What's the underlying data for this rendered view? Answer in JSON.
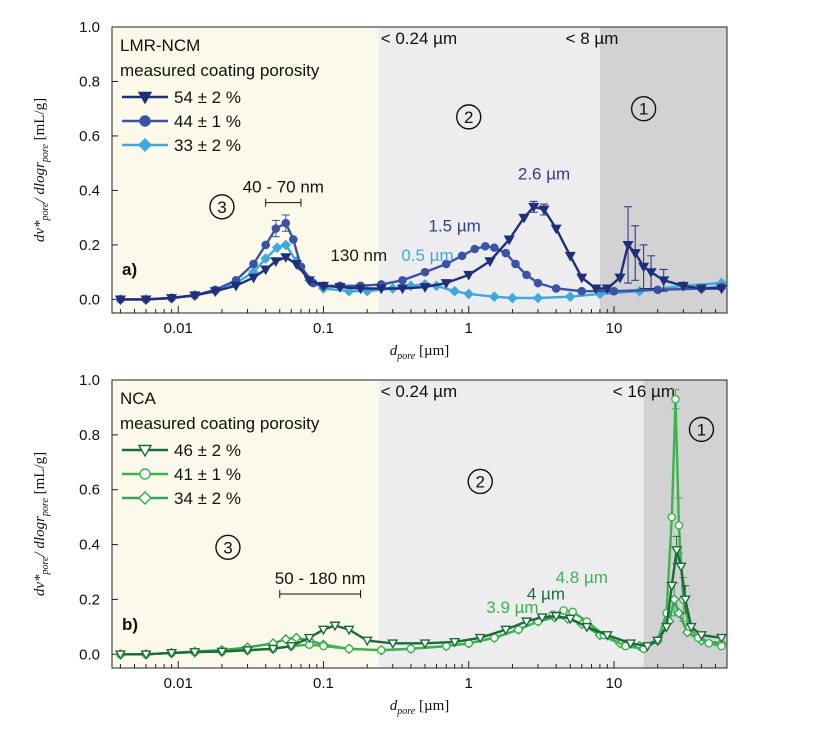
{
  "chart_data": [
    {
      "type": "line",
      "panel_label": "a)",
      "x_scale": "log",
      "xlim": [
        0.0035,
        60
      ],
      "ylim": [
        -0.05,
        1.0
      ],
      "xticks": [
        0.01,
        0.1,
        1,
        10
      ],
      "xtick_labels": [
        "0.01",
        "0.1",
        "1",
        "10"
      ],
      "yticks": [
        0.0,
        0.2,
        0.4,
        0.6,
        0.8,
        1.0
      ],
      "ytick_labels": [
        "0.0",
        "0.2",
        "0.4",
        "0.6",
        "0.8",
        "1.0"
      ],
      "xlabel": {
        "main": "d",
        "sub": "pore",
        "unit": " [µm]"
      },
      "ylabel": {
        "p1": "dv*",
        "p1sub": "pore",
        "p2": "/ dlogr",
        "p2sub": "pore",
        "unit": " [mL/g]"
      },
      "legend_title_line1": "LMR-NCM",
      "legend_title_line2": "measured coating porosity",
      "legend_position": "top-left",
      "regions": [
        {
          "x0": 0.0035,
          "x1": 0.24,
          "color": "#fbfaea",
          "label": "3",
          "label_x": 0.02,
          "label_y": 0.34,
          "threshold": ""
        },
        {
          "x0": 0.24,
          "x1": 8,
          "color": "#ededef",
          "label": "2",
          "label_x": 1.0,
          "label_y": 0.67,
          "threshold": "< 0.24 µm"
        },
        {
          "x0": 8,
          "x1": 60,
          "color": "#d2d2d4",
          "label": "1",
          "label_x": 16,
          "label_y": 0.7,
          "threshold": "< 8 µm"
        }
      ],
      "thresholds": [
        {
          "text": "< 0.24 µm",
          "x": 0.24,
          "y": 0.96
        },
        {
          "text": "< 8 µm",
          "x": 4.5,
          "y": 0.96
        }
      ],
      "annotations": [
        {
          "text": "2.6 µm",
          "x": 3.3,
          "y": 0.44,
          "color": "#2e3f8c"
        },
        {
          "text": "1.5 µm",
          "x": 0.8,
          "y": 0.25,
          "color": "#2e3f8c"
        },
        {
          "text": "130 nm",
          "x": 0.175,
          "y": 0.14,
          "color": "#1a1a1a"
        },
        {
          "text": "0.5 µm",
          "x": 0.52,
          "y": 0.14,
          "color": "#3fa9dd"
        }
      ],
      "size_bar": {
        "text": "40 - 70 nm",
        "x0": 0.04,
        "x1": 0.07,
        "y": 0.355
      },
      "series": [
        {
          "name": "54 ± 2 %",
          "color": "#1f2f7a",
          "marker": "triangle-down",
          "filled": true,
          "x": [
            0.004,
            0.006,
            0.009,
            0.013,
            0.018,
            0.025,
            0.033,
            0.04,
            0.047,
            0.055,
            0.065,
            0.08,
            0.1,
            0.13,
            0.18,
            0.25,
            0.35,
            0.5,
            0.7,
            1.0,
            1.4,
            1.9,
            2.4,
            2.8,
            3.3,
            4.0,
            5.0,
            6.0,
            7.5,
            9.0,
            11,
            12.5,
            14,
            16,
            18,
            22,
            30,
            40,
            55
          ],
          "y": [
            0.0,
            0.0,
            0.005,
            0.015,
            0.03,
            0.05,
            0.08,
            0.11,
            0.14,
            0.155,
            0.13,
            0.07,
            0.05,
            0.045,
            0.04,
            0.04,
            0.04,
            0.045,
            0.06,
            0.09,
            0.14,
            0.22,
            0.3,
            0.34,
            0.33,
            0.26,
            0.16,
            0.08,
            0.04,
            0.04,
            0.08,
            0.2,
            0.17,
            0.12,
            0.1,
            0.07,
            0.05,
            0.04,
            0.04
          ],
          "errors": [
            {
              "x": 12.5,
              "y": 0.2,
              "e": 0.14
            },
            {
              "x": 14,
              "y": 0.17,
              "e": 0.1
            },
            {
              "x": 16,
              "y": 0.12,
              "e": 0.08
            },
            {
              "x": 18,
              "y": 0.1,
              "e": 0.06
            },
            {
              "x": 22,
              "y": 0.07,
              "e": 0.04
            },
            {
              "x": 2.8,
              "y": 0.34,
              "e": 0.02
            },
            {
              "x": 3.3,
              "y": 0.33,
              "e": 0.02
            }
          ]
        },
        {
          "name": "44 ± 1 %",
          "color": "#3b53a6",
          "marker": "circle",
          "filled": true,
          "x": [
            0.004,
            0.006,
            0.009,
            0.013,
            0.018,
            0.025,
            0.033,
            0.04,
            0.047,
            0.055,
            0.062,
            0.07,
            0.085,
            0.1,
            0.13,
            0.18,
            0.25,
            0.35,
            0.5,
            0.7,
            0.9,
            1.1,
            1.3,
            1.5,
            1.8,
            2.1,
            2.5,
            3.0,
            4.0,
            6.0,
            10,
            20,
            40,
            55
          ],
          "y": [
            0.0,
            0.0,
            0.005,
            0.015,
            0.035,
            0.07,
            0.13,
            0.2,
            0.26,
            0.28,
            0.22,
            0.12,
            0.06,
            0.05,
            0.05,
            0.05,
            0.055,
            0.07,
            0.1,
            0.13,
            0.16,
            0.185,
            0.195,
            0.19,
            0.17,
            0.13,
            0.09,
            0.06,
            0.04,
            0.03,
            0.03,
            0.035,
            0.04,
            0.045
          ],
          "errors": [
            {
              "x": 0.055,
              "y": 0.28,
              "e": 0.03
            },
            {
              "x": 0.047,
              "y": 0.26,
              "e": 0.03
            }
          ]
        },
        {
          "name": "33 ± 2 %",
          "color": "#3fa9dd",
          "marker": "diamond",
          "filled": true,
          "x": [
            0.004,
            0.006,
            0.009,
            0.013,
            0.018,
            0.025,
            0.033,
            0.04,
            0.048,
            0.055,
            0.065,
            0.08,
            0.1,
            0.15,
            0.2,
            0.3,
            0.4,
            0.5,
            0.6,
            0.8,
            1.0,
            1.5,
            2.0,
            3.0,
            5.0,
            8.0,
            15,
            30,
            55
          ],
          "y": [
            0.0,
            0.0,
            0.005,
            0.015,
            0.03,
            0.06,
            0.1,
            0.15,
            0.19,
            0.2,
            0.14,
            0.07,
            0.04,
            0.03,
            0.03,
            0.04,
            0.05,
            0.055,
            0.05,
            0.03,
            0.02,
            0.01,
            0.005,
            0.005,
            0.01,
            0.02,
            0.03,
            0.05,
            0.06
          ],
          "errors": []
        }
      ]
    },
    {
      "type": "line",
      "panel_label": "b)",
      "x_scale": "log",
      "xlim": [
        0.0035,
        60
      ],
      "ylim": [
        -0.05,
        1.0
      ],
      "xticks": [
        0.01,
        0.1,
        1,
        10
      ],
      "xtick_labels": [
        "0.01",
        "0.1",
        "1",
        "10"
      ],
      "yticks": [
        0.0,
        0.2,
        0.4,
        0.6,
        0.8,
        1.0
      ],
      "ytick_labels": [
        "0.0",
        "0.2",
        "0.4",
        "0.6",
        "0.8",
        "1.0"
      ],
      "xlabel": {
        "main": "d",
        "sub": "pore",
        "unit": " [µm]"
      },
      "ylabel": {
        "p1": "dv*",
        "p1sub": "pore",
        "p2": "/ dlogr",
        "p2sub": "pore",
        "unit": " [mL/g]"
      },
      "legend_title_line1": "NCA",
      "legend_title_line2": "measured coating porosity",
      "legend_position": "top-left",
      "regions": [
        {
          "x0": 0.0035,
          "x1": 0.24,
          "color": "#fbfaea",
          "label": "3",
          "label_x": 0.022,
          "label_y": 0.39,
          "threshold": ""
        },
        {
          "x0": 0.24,
          "x1": 16,
          "color": "#ededef",
          "label": "2",
          "label_x": 1.2,
          "label_y": 0.63,
          "threshold": "< 0.24 µm"
        },
        {
          "x0": 16,
          "x1": 60,
          "color": "#d2d2d4",
          "label": "1",
          "label_x": 40,
          "label_y": 0.82,
          "threshold": "< 16 µm"
        }
      ],
      "thresholds": [
        {
          "text": "< 0.24 µm",
          "x": 0.24,
          "y": 0.96
        },
        {
          "text": "< 16 µm",
          "x": 9.5,
          "y": 0.96
        }
      ],
      "annotations": [
        {
          "text": "4.8 µm",
          "x": 6.0,
          "y": 0.26,
          "color": "#3cb44b"
        },
        {
          "text": "4 µm",
          "x": 3.4,
          "y": 0.2,
          "color": "#1e6b3a"
        },
        {
          "text": "3.9 µm",
          "x": 2.0,
          "y": 0.15,
          "color": "#3cb44b"
        }
      ],
      "size_bar": {
        "text": "50 - 180 nm",
        "x0": 0.05,
        "x1": 0.18,
        "y": 0.22
      },
      "series": [
        {
          "name": "46 ± 2 %",
          "color": "#1e6b3a",
          "marker": "triangle-down",
          "filled": false,
          "x": [
            0.004,
            0.006,
            0.009,
            0.013,
            0.02,
            0.03,
            0.045,
            0.06,
            0.08,
            0.1,
            0.12,
            0.15,
            0.2,
            0.3,
            0.5,
            0.8,
            1.2,
            1.8,
            2.5,
            3.2,
            4.0,
            5.0,
            6.5,
            9.0,
            13,
            17,
            20,
            23,
            25,
            27,
            29,
            31,
            34,
            40,
            55
          ],
          "y": [
            0.0,
            0.0,
            0.005,
            0.008,
            0.01,
            0.015,
            0.02,
            0.03,
            0.06,
            0.09,
            0.105,
            0.09,
            0.05,
            0.04,
            0.04,
            0.045,
            0.06,
            0.09,
            0.12,
            0.135,
            0.14,
            0.13,
            0.1,
            0.07,
            0.04,
            0.03,
            0.05,
            0.1,
            0.25,
            0.38,
            0.32,
            0.2,
            0.1,
            0.07,
            0.06
          ],
          "errors": [
            {
              "x": 27,
              "y": 0.38,
              "e": 0.05
            },
            {
              "x": 31,
              "y": 0.2,
              "e": 0.05
            }
          ]
        },
        {
          "name": "41 ± 1 %",
          "color": "#3cb44b",
          "marker": "circle",
          "filled": false,
          "x": [
            0.004,
            0.006,
            0.009,
            0.013,
            0.02,
            0.03,
            0.045,
            0.06,
            0.08,
            0.1,
            0.15,
            0.25,
            0.4,
            0.7,
            1.0,
            1.5,
            2.2,
            3.0,
            3.8,
            4.5,
            5.2,
            6.5,
            8.5,
            12,
            16,
            20,
            23,
            25,
            26.5,
            28,
            30,
            33,
            38,
            45,
            55
          ],
          "y": [
            0.0,
            0.0,
            0.005,
            0.008,
            0.01,
            0.015,
            0.02,
            0.03,
            0.035,
            0.03,
            0.02,
            0.015,
            0.02,
            0.03,
            0.04,
            0.06,
            0.09,
            0.12,
            0.145,
            0.16,
            0.155,
            0.12,
            0.07,
            0.03,
            0.02,
            0.05,
            0.15,
            0.5,
            0.93,
            0.47,
            0.2,
            0.1,
            0.06,
            0.04,
            0.03
          ],
          "errors": [
            {
              "x": 26.5,
              "y": 0.93,
              "e": 0.035
            },
            {
              "x": 28,
              "y": 0.47,
              "e": 0.1
            },
            {
              "x": 30,
              "y": 0.2,
              "e": 0.08
            }
          ]
        },
        {
          "name": "34 ± 2 %",
          "color": "#35a853",
          "marker": "diamond",
          "filled": false,
          "x": [
            0.004,
            0.006,
            0.009,
            0.013,
            0.02,
            0.03,
            0.045,
            0.055,
            0.065,
            0.08,
            0.1,
            0.15,
            0.25,
            0.4,
            0.7,
            1.0,
            1.5,
            2.2,
            3.0,
            3.9,
            4.8,
            6.0,
            8.0,
            11,
            15,
            20,
            24,
            26,
            28,
            32,
            40,
            55
          ],
          "y": [
            0.0,
            0.0,
            0.005,
            0.01,
            0.015,
            0.025,
            0.04,
            0.055,
            0.06,
            0.05,
            0.035,
            0.02,
            0.015,
            0.02,
            0.03,
            0.04,
            0.06,
            0.09,
            0.12,
            0.135,
            0.13,
            0.11,
            0.07,
            0.04,
            0.03,
            0.05,
            0.12,
            0.2,
            0.15,
            0.08,
            0.05,
            0.04
          ],
          "errors": [
            {
              "x": 26,
              "y": 0.2,
              "e": 0.06
            }
          ]
        }
      ]
    }
  ]
}
